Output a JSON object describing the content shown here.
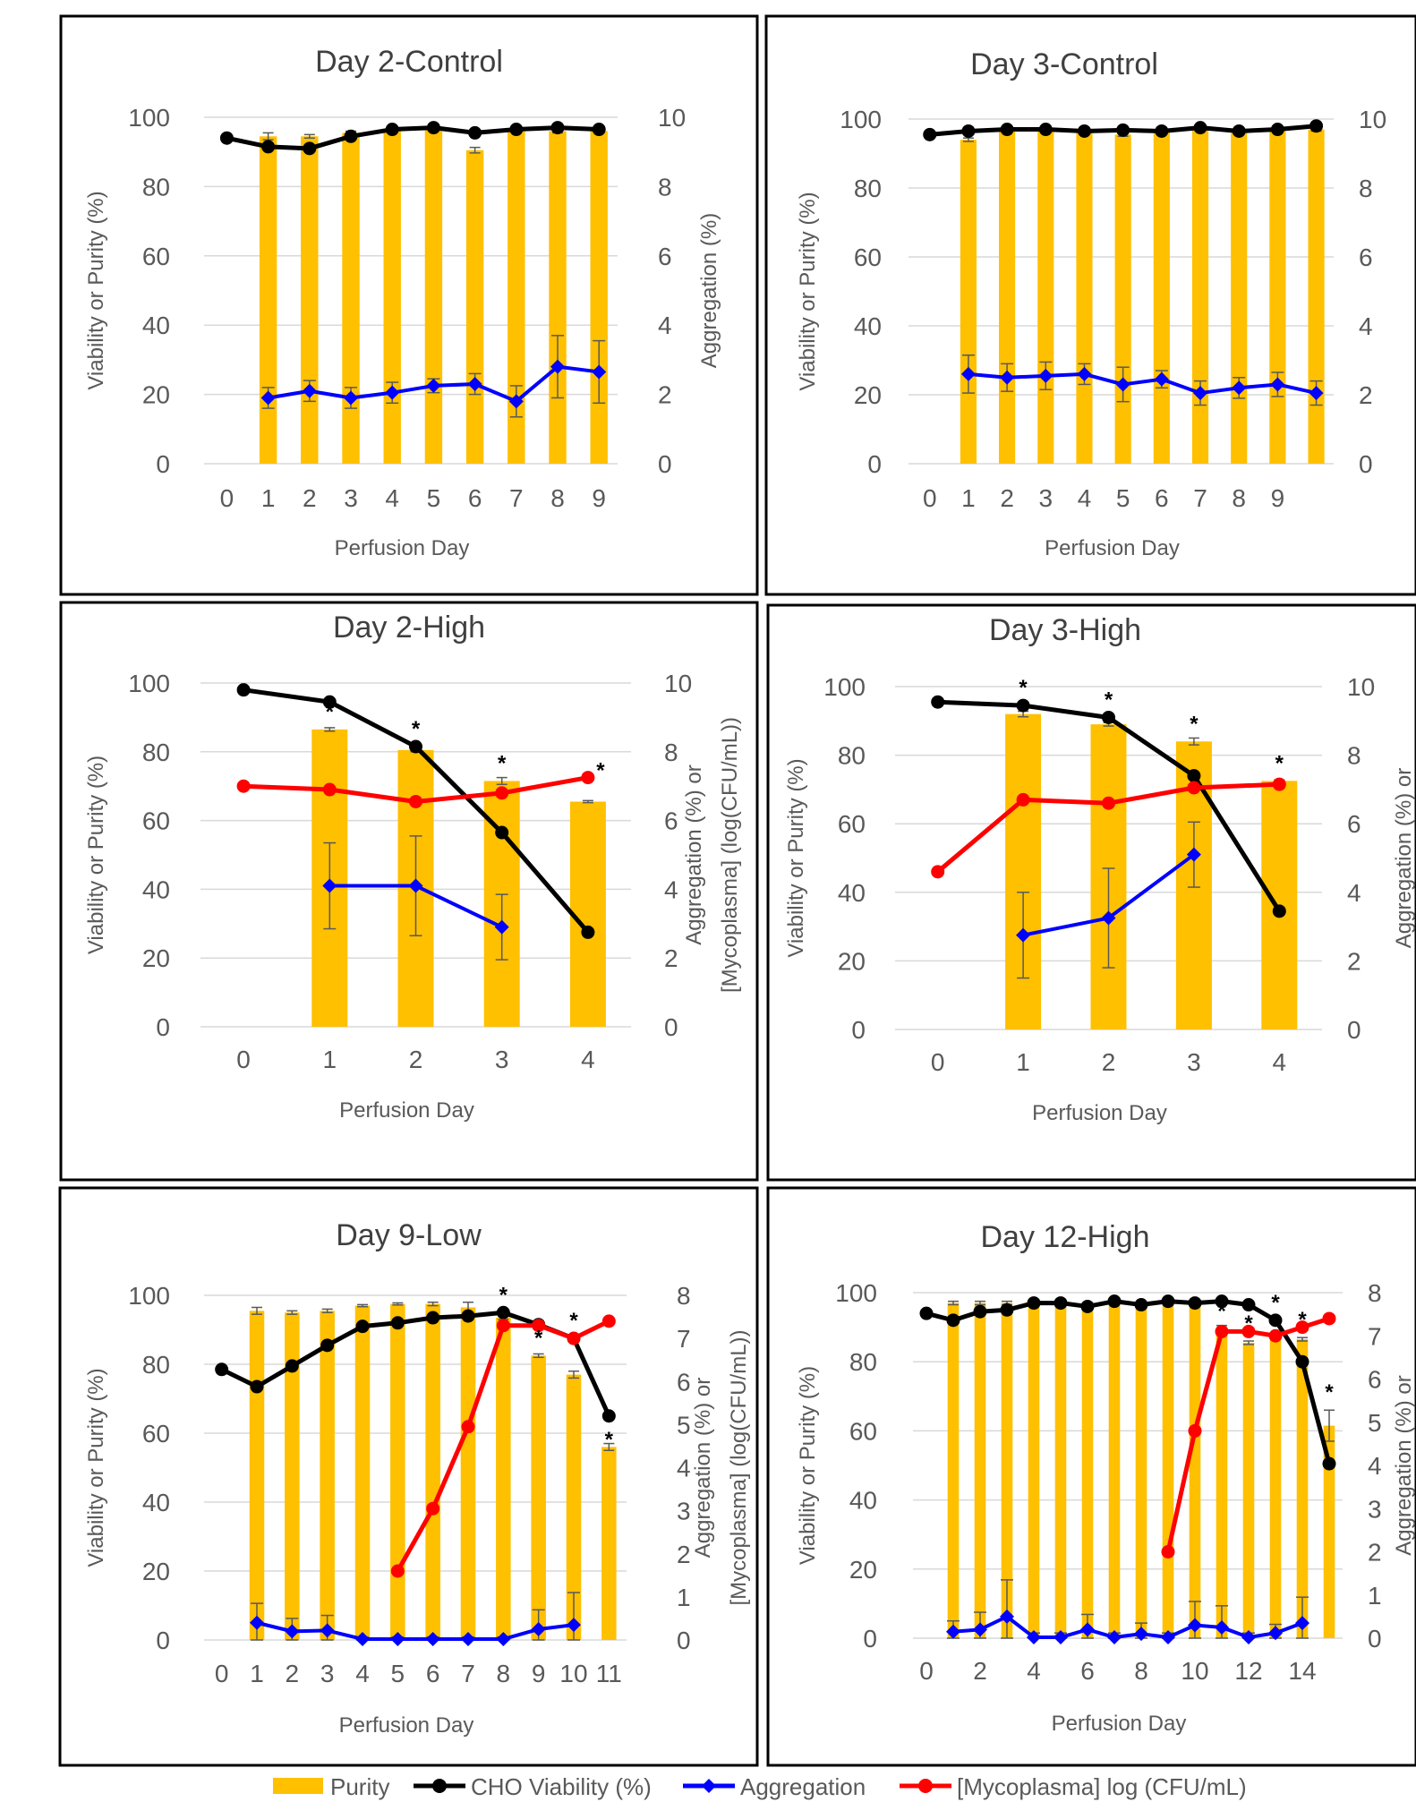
{
  "colors": {
    "purity": "#FFC000",
    "viability": "#000000",
    "aggregation": "#0000FF",
    "mycoplasma": "#FF0000",
    "grid": "#D9D9D9",
    "axis_text": "#595959",
    "error_bar": "#595959",
    "frame": "#000000"
  },
  "legend": {
    "items": [
      {
        "label": "Purity",
        "series": "purity",
        "icon": "bar-swatch-icon"
      },
      {
        "label": "CHO Viability (%)",
        "series": "viability",
        "icon": "circle-line-icon"
      },
      {
        "label": "Aggregation",
        "series": "aggregation",
        "icon": "diamond-line-icon"
      },
      {
        "label": "[Mycoplasma] log (CFU/mL)",
        "series": "mycoplasma",
        "icon": "circle-line-icon"
      }
    ]
  },
  "chart_data": [
    {
      "type": "bar+line",
      "title": "Day 2-Control",
      "xlabel": "Perfusion Day",
      "ylabel": "Viability or Purity (%)",
      "y2label": "Aggregation (%)",
      "categories": [
        "0",
        "1",
        "2",
        "3",
        "4",
        "5",
        "6",
        "7",
        "8",
        "9"
      ],
      "ylim": [
        0,
        100
      ],
      "y2lim": [
        0,
        10
      ],
      "yticks": [
        "0",
        "20",
        "40",
        "60",
        "80",
        "100"
      ],
      "y2ticks": [
        "0",
        "2",
        "4",
        "6",
        "8",
        "10"
      ],
      "grid": true,
      "series": [
        {
          "name": "Purity",
          "kind": "bar",
          "axis": "left",
          "values": [
            null,
            94.5,
            94.5,
            95.5,
            96.5,
            96.8,
            90.5,
            96.2,
            96.0,
            96.0
          ],
          "errors": [
            null,
            1.0,
            0.5,
            0.5,
            0.5,
            0.5,
            0.8,
            0.5,
            0.5,
            0.5
          ]
        },
        {
          "name": "CHO Viability (%)",
          "kind": "line",
          "axis": "left",
          "values": [
            94.0,
            91.5,
            91.0,
            94.5,
            96.5,
            97.0,
            95.5,
            96.5,
            97.0,
            96.5
          ]
        },
        {
          "name": "Aggregation",
          "kind": "line",
          "axis": "right",
          "values": [
            null,
            1.9,
            2.1,
            1.9,
            2.05,
            2.25,
            2.3,
            1.8,
            2.8,
            2.65
          ],
          "errors": [
            null,
            0.3,
            0.3,
            0.3,
            0.3,
            0.2,
            0.3,
            0.45,
            0.9,
            0.9
          ]
        }
      ],
      "asterisks": []
    },
    {
      "type": "bar+line",
      "title": "Day 3-Control",
      "xlabel": "Perfusion Day",
      "ylabel": "Viability or Purity (%)",
      "y2label": "",
      "categories": [
        "0",
        "1",
        "2",
        "3",
        "4",
        "5",
        "6",
        "7",
        "8",
        "9",
        ""
      ],
      "ylim": [
        0,
        100
      ],
      "y2lim": [
        0,
        10
      ],
      "yticks": [
        "0",
        "20",
        "40",
        "60",
        "80",
        "100"
      ],
      "y2ticks": [
        "0",
        "2",
        "4",
        "6",
        "8",
        "10"
      ],
      "grid": true,
      "series": [
        {
          "name": "Purity",
          "kind": "bar",
          "axis": "left",
          "values": [
            null,
            94.0,
            96.5,
            96.5,
            96.5,
            95.5,
            96.5,
            97.0,
            96.0,
            96.5,
            97.0
          ],
          "errors": [
            null,
            0.5,
            0.5,
            0.5,
            0.5,
            0.5,
            0.5,
            0.5,
            0.5,
            0.5,
            0.5
          ]
        },
        {
          "name": "CHO Viability (%)",
          "kind": "line",
          "axis": "left",
          "values": [
            95.5,
            96.5,
            97.0,
            97.0,
            96.5,
            96.8,
            96.5,
            97.5,
            96.5,
            97.0,
            98.0
          ]
        },
        {
          "name": "Aggregation",
          "kind": "line",
          "axis": "right",
          "values": [
            null,
            2.6,
            2.5,
            2.55,
            2.6,
            2.3,
            2.45,
            2.05,
            2.2,
            2.3,
            2.05
          ],
          "errors": [
            null,
            0.55,
            0.4,
            0.4,
            0.3,
            0.5,
            0.25,
            0.35,
            0.3,
            0.35,
            0.35
          ]
        }
      ],
      "asterisks": []
    },
    {
      "type": "bar+line",
      "title": "Day 2-High",
      "xlabel": "Perfusion Day",
      "ylabel": "Viability or Purity (%)",
      "y2label": "Aggregation (%) or",
      "y2label2": "[Mycoplasma] (log(CFU/mL))",
      "categories": [
        "0",
        "1",
        "2",
        "3",
        "4"
      ],
      "ylim": [
        0,
        100
      ],
      "y2lim": [
        0,
        10
      ],
      "yticks": [
        "0",
        "20",
        "40",
        "60",
        "80",
        "100"
      ],
      "y2ticks": [
        "0",
        "2",
        "4",
        "6",
        "8",
        "10"
      ],
      "grid": true,
      "series": [
        {
          "name": "Purity",
          "kind": "bar",
          "axis": "left",
          "values": [
            null,
            86.5,
            80.5,
            71.5,
            65.5
          ],
          "errors": [
            null,
            0.5,
            0.5,
            1.0,
            0.3
          ]
        },
        {
          "name": "CHO Viability (%)",
          "kind": "line",
          "axis": "left",
          "values": [
            98.0,
            94.5,
            81.5,
            56.5,
            27.5
          ]
        },
        {
          "name": "Aggregation",
          "kind": "line",
          "axis": "right",
          "values": [
            null,
            4.1,
            4.1,
            2.9,
            null
          ],
          "errors": [
            null,
            1.25,
            1.45,
            0.95,
            null
          ]
        },
        {
          "name": "[Mycoplasma] log (CFU/mL)",
          "kind": "line",
          "axis": "right",
          "values": [
            7.0,
            6.9,
            6.55,
            6.8,
            7.25
          ]
        }
      ],
      "asterisks": [
        {
          "x": 1,
          "value": 86.5,
          "axis": "left"
        },
        {
          "x": 2,
          "value": 81.5,
          "axis": "left"
        },
        {
          "x": 3,
          "value": 71.5,
          "axis": "left"
        },
        {
          "x": 4,
          "value": 7.25,
          "axis": "right",
          "side": "right"
        }
      ]
    },
    {
      "type": "bar+line",
      "title": "Day 3-High",
      "xlabel": "Perfusion Day",
      "ylabel": "Viability or Purity (%)",
      "y2label": "Aggregation (%) or",
      "categories": [
        "0",
        "1",
        "2",
        "3",
        "4"
      ],
      "ylim": [
        0,
        100
      ],
      "y2lim": [
        0,
        10
      ],
      "yticks": [
        "0",
        "20",
        "40",
        "60",
        "80",
        "100"
      ],
      "y2ticks": [
        "0",
        "2",
        "4",
        "6",
        "8",
        "10"
      ],
      "grid": true,
      "series": [
        {
          "name": "Purity",
          "kind": "bar",
          "axis": "left",
          "values": [
            null,
            92.0,
            89.0,
            84.0,
            72.5
          ],
          "errors": [
            null,
            0.8,
            0.5,
            1.0,
            0.3
          ]
        },
        {
          "name": "CHO Viability (%)",
          "kind": "line",
          "axis": "left",
          "values": [
            95.5,
            94.5,
            91.0,
            74.0,
            34.5
          ]
        },
        {
          "name": "Aggregation",
          "kind": "line",
          "axis": "right",
          "values": [
            null,
            2.75,
            3.25,
            5.1,
            null
          ],
          "errors": [
            null,
            1.25,
            1.45,
            0.95,
            null
          ]
        },
        {
          "name": "[Mycoplasma] log (CFU/mL)",
          "kind": "line",
          "axis": "right",
          "values": [
            4.6,
            6.7,
            6.6,
            7.05,
            7.15
          ]
        }
      ],
      "asterisks": [
        {
          "x": 1,
          "value": 94.5,
          "axis": "left"
        },
        {
          "x": 2,
          "value": 91.0,
          "axis": "left"
        },
        {
          "x": 3,
          "value": 84.0,
          "axis": "left"
        },
        {
          "x": 4,
          "value": 72.5,
          "axis": "left"
        }
      ]
    },
    {
      "type": "bar+line",
      "title": "Day 9-Low",
      "xlabel": "Perfusion Day",
      "ylabel": "Viability or Purity (%)",
      "y2label": "Aggregation (%) or",
      "y2label2": "[Mycoplasma] (log(CFU/mL))",
      "categories": [
        "0",
        "1",
        "2",
        "3",
        "4",
        "5",
        "6",
        "7",
        "8",
        "9",
        "10",
        "11"
      ],
      "ylim": [
        0,
        100
      ],
      "y2lim": [
        0,
        8
      ],
      "yticks": [
        "0",
        "20",
        "40",
        "60",
        "80",
        "100"
      ],
      "y2ticks": [
        "0",
        "1",
        "2",
        "3",
        "4",
        "5",
        "6",
        "7",
        "8"
      ],
      "grid": true,
      "series": [
        {
          "name": "Purity",
          "kind": "bar",
          "axis": "left",
          "values": [
            null,
            95.5,
            95.0,
            95.5,
            97.0,
            97.5,
            97.5,
            96.5,
            93.5,
            82.5,
            77.0,
            56.0
          ],
          "errors": [
            null,
            1.0,
            0.5,
            0.5,
            0.3,
            0.3,
            0.5,
            1.5,
            0.5,
            0.5,
            1.0,
            1.0
          ]
        },
        {
          "name": "CHO Viability (%)",
          "kind": "line",
          "axis": "left",
          "values": [
            78.5,
            73.5,
            79.5,
            85.5,
            91.0,
            92.0,
            93.5,
            94.0,
            95.0,
            91.5,
            87.5,
            65.0
          ]
        },
        {
          "name": "Aggregation",
          "kind": "line",
          "axis": "right",
          "values": [
            null,
            0.4,
            0.2,
            0.22,
            0.02,
            0.02,
            0.02,
            0.02,
            0.02,
            0.25,
            0.35,
            null
          ],
          "errors": [
            null,
            0.45,
            0.3,
            0.35,
            0.05,
            0.05,
            0.05,
            0.05,
            0.05,
            0.45,
            0.75,
            null
          ]
        },
        {
          "name": "[Mycoplasma] log (CFU/mL)",
          "kind": "line",
          "axis": "right",
          "values": [
            null,
            null,
            null,
            null,
            null,
            1.6,
            3.05,
            4.95,
            7.3,
            7.3,
            7.0,
            7.4
          ]
        }
      ],
      "asterisks": [
        {
          "x": 8,
          "value": 95.0,
          "axis": "left"
        },
        {
          "x": 9,
          "value": 82.5,
          "axis": "left"
        },
        {
          "x": 10,
          "value": 87.5,
          "axis": "left"
        },
        {
          "x": 11,
          "value": 65.0,
          "axis": "left",
          "below": true
        }
      ]
    },
    {
      "type": "bar+line",
      "title": "Day 12-High",
      "xlabel": "Perfusion Day",
      "ylabel": "Viability or Purity (%)",
      "y2label": "Aggregation (%) or",
      "categories": [
        "0",
        "1",
        "2",
        "3",
        "4",
        "5",
        "6",
        "7",
        "8",
        "9",
        "10",
        "11",
        "12",
        "13",
        "14",
        "15"
      ],
      "xticklabels": [
        "0",
        "",
        "2",
        "",
        "4",
        "",
        "6",
        "",
        "8",
        "",
        "10",
        "",
        "12",
        "",
        "14",
        ""
      ],
      "ylim": [
        0,
        100
      ],
      "y2lim": [
        0,
        8
      ],
      "yticks": [
        "0",
        "20",
        "40",
        "60",
        "80",
        "100"
      ],
      "y2ticks": [
        "0",
        "1",
        "2",
        "3",
        "4",
        "5",
        "6",
        "7",
        "8"
      ],
      "grid": true,
      "series": [
        {
          "name": "Purity",
          "kind": "bar",
          "axis": "left",
          "values": [
            null,
            97.0,
            97.0,
            97.0,
            97.0,
            96.5,
            96.5,
            97.0,
            96.5,
            97.0,
            97.0,
            89.5,
            85.5,
            87.0,
            86.5,
            61.5
          ],
          "errors": [
            null,
            0.5,
            0.5,
            0.5,
            0.5,
            0.5,
            0.5,
            0.5,
            0.5,
            0.5,
            0.5,
            1.0,
            0.5,
            0.5,
            0.5,
            4.5
          ]
        },
        {
          "name": "CHO Viability (%)",
          "kind": "line",
          "axis": "left",
          "values": [
            94.0,
            92.0,
            94.5,
            95.0,
            97.0,
            97.0,
            96.0,
            97.5,
            96.5,
            97.5,
            97.0,
            97.5,
            96.5,
            92.0,
            80.0,
            50.5
          ]
        },
        {
          "name": "Aggregation",
          "kind": "line",
          "axis": "right",
          "values": [
            null,
            0.15,
            0.2,
            0.5,
            0.02,
            0.02,
            0.2,
            0.02,
            0.1,
            0.02,
            0.3,
            0.25,
            0.02,
            0.12,
            0.35,
            null
          ],
          "errors": [
            null,
            0.25,
            0.4,
            0.85,
            0.1,
            0.1,
            0.35,
            0.1,
            0.25,
            0.1,
            0.55,
            0.5,
            0.1,
            0.2,
            0.6,
            null
          ]
        },
        {
          "name": "[Mycoplasma] log (CFU/mL)",
          "kind": "line",
          "axis": "right",
          "values": [
            null,
            null,
            null,
            null,
            null,
            null,
            null,
            null,
            null,
            2.0,
            4.8,
            7.1,
            7.1,
            7.0,
            7.2,
            7.4
          ]
        }
      ],
      "asterisks": [
        {
          "x": 11,
          "value": 89.5,
          "axis": "left"
        },
        {
          "x": 12,
          "value": 86.0,
          "axis": "left"
        },
        {
          "x": 13,
          "value": 92.0,
          "axis": "left"
        },
        {
          "x": 14,
          "value": 87.0,
          "axis": "left"
        },
        {
          "x": 15,
          "value": 66.0,
          "axis": "left"
        }
      ]
    }
  ]
}
